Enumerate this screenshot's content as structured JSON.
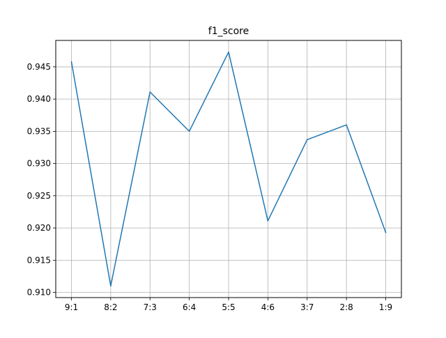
{
  "chart_data": {
    "type": "line",
    "title": "f1_score",
    "xlabel": "",
    "ylabel": "",
    "categories": [
      "9:1",
      "8:2",
      "7:3",
      "6:4",
      "5:5",
      "4:6",
      "3:7",
      "2:8",
      "1:9"
    ],
    "series": [
      {
        "values": [
          0.9458,
          0.911,
          0.9411,
          0.935,
          0.9473,
          0.9211,
          0.9337,
          0.936,
          0.9193
        ]
      }
    ],
    "ylim": [
      0.9092,
      0.9491
    ],
    "yticks": [
      "0.910",
      "0.915",
      "0.920",
      "0.925",
      "0.930",
      "0.935",
      "0.940",
      "0.945"
    ],
    "grid": true,
    "line_color": "#1f77b4"
  }
}
